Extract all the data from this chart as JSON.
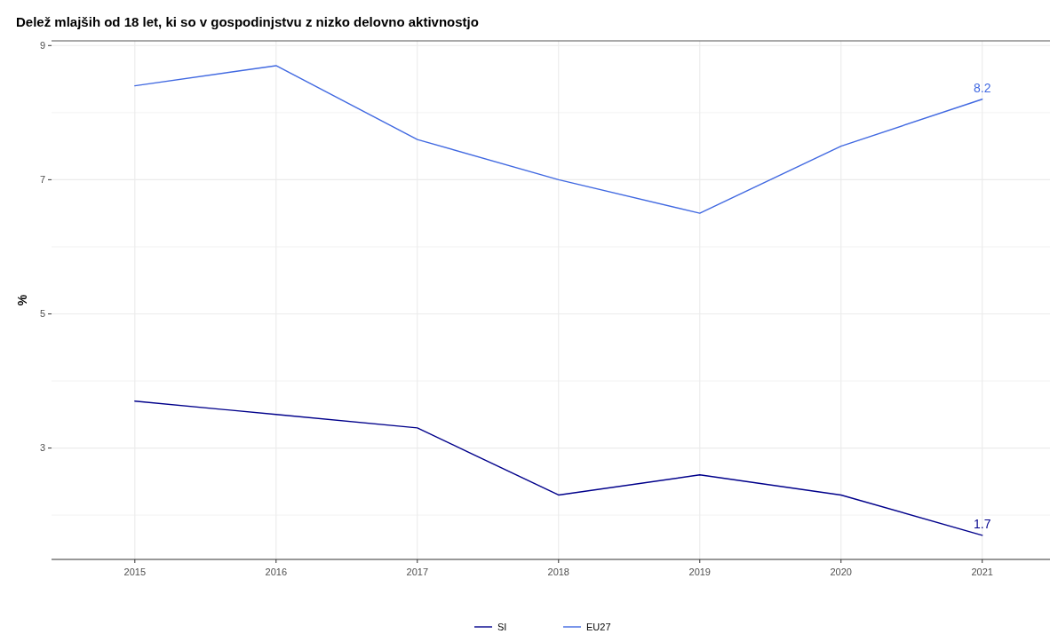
{
  "chart_data": {
    "type": "line",
    "title": "Delež mlajših od 18 let, ki so v gospodinjstvu z nizko delovno aktivnostjo",
    "ylabel": "%",
    "x": [
      2015,
      2016,
      2017,
      2018,
      2019,
      2020,
      2021
    ],
    "xlim": [
      2014.41,
      2021.53
    ],
    "xticks": [
      2015,
      2016,
      2017,
      2018,
      2019,
      2020,
      2021
    ],
    "ylim": [
      1.34,
      9.07
    ],
    "yticks": [
      {
        "value": 2,
        "label": null
      },
      3,
      {
        "value": 4,
        "label": null
      },
      5,
      {
        "value": 6,
        "label": null
      },
      7,
      {
        "value": 8,
        "label": null
      },
      9
    ],
    "grid": true,
    "legend": "bottom",
    "line_style": "solid",
    "marker": "none",
    "series": [
      {
        "name": "SI",
        "color": "#00008b",
        "values": [
          3.7,
          3.5,
          3.3,
          2.3,
          2.6,
          2.3,
          1.7
        ],
        "value_labels": [
          null,
          null,
          null,
          null,
          null,
          null,
          "1.7"
        ]
      },
      {
        "name": "EU27",
        "color": "#4169e1",
        "values": [
          8.4,
          8.7,
          7.6,
          7.0,
          6.5,
          7.5,
          8.2
        ],
        "value_labels": [
          null,
          null,
          null,
          null,
          null,
          null,
          "8.2"
        ]
      }
    ]
  }
}
